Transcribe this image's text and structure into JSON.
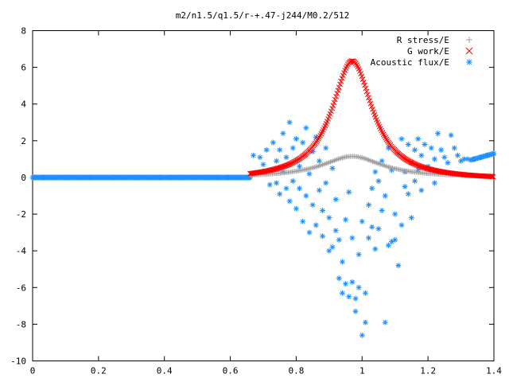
{
  "chart_data": {
    "type": "scatter",
    "title": "m2/n1.5/q1.5/r-+.47-j244/M0.2/512",
    "xlabel": "",
    "ylabel": "",
    "xlim": [
      0,
      1.4
    ],
    "ylim": [
      -10,
      8
    ],
    "xticks": [
      "0",
      "0.2",
      "0.4",
      "0.6",
      "0.8",
      "1",
      "1.2",
      "1.4"
    ],
    "yticks": [
      "8",
      "6",
      "4",
      "2",
      "0",
      "-2",
      "-4",
      "-6",
      "-8",
      "-10"
    ],
    "grid": false,
    "legend_position": "top-right",
    "series": [
      {
        "name": "R stress/E",
        "marker": "+",
        "color": "#a0a0a0",
        "peak_x": 0.97,
        "peak_y": 1.15,
        "x_start": 0.66,
        "x_end": 1.4
      },
      {
        "name": "G work/E",
        "marker": "x",
        "color": "#ff0000",
        "peak_x": 0.97,
        "peak_y": 6.5,
        "x_start": 0.66,
        "x_end": 1.4
      },
      {
        "name": "Acoustic flux/E",
        "marker": "*",
        "color": "#1e90ff",
        "baseline_x_range": [
          0,
          0.66
        ],
        "edge_values": {
          "left_x": 0.66,
          "left_y": 1.2,
          "right_x": 1.4,
          "right_y": 1.3
        },
        "scatter_points": [
          [
            0.67,
            1.2
          ],
          [
            0.69,
            1.1
          ],
          [
            0.7,
            0.7
          ],
          [
            0.71,
            1.5
          ],
          [
            0.72,
            0.4
          ],
          [
            0.72,
            -0.4
          ],
          [
            0.73,
            1.9
          ],
          [
            0.74,
            -0.3
          ],
          [
            0.74,
            0.9
          ],
          [
            0.75,
            1.5
          ],
          [
            0.75,
            -0.9
          ],
          [
            0.76,
            0.3
          ],
          [
            0.76,
            2.4
          ],
          [
            0.77,
            -0.6
          ],
          [
            0.77,
            1.1
          ],
          [
            0.78,
            3.0
          ],
          [
            0.78,
            -1.3
          ],
          [
            0.79,
            1.6
          ],
          [
            0.79,
            -0.2
          ],
          [
            0.8,
            2.1
          ],
          [
            0.8,
            -1.7
          ],
          [
            0.81,
            0.6
          ],
          [
            0.81,
            -0.6
          ],
          [
            0.82,
            1.9
          ],
          [
            0.82,
            -2.4
          ],
          [
            0.83,
            -1.0
          ],
          [
            0.83,
            2.7
          ],
          [
            0.84,
            0.2
          ],
          [
            0.84,
            -3.0
          ],
          [
            0.85,
            1.4
          ],
          [
            0.85,
            -1.5
          ],
          [
            0.86,
            -2.6
          ],
          [
            0.86,
            2.2
          ],
          [
            0.87,
            -0.7
          ],
          [
            0.87,
            0.9
          ],
          [
            0.88,
            -3.2
          ],
          [
            0.88,
            -1.8
          ],
          [
            0.89,
            1.6
          ],
          [
            0.89,
            -0.3
          ],
          [
            0.9,
            -4.0
          ],
          [
            0.9,
            -2.2
          ],
          [
            0.91,
            -3.8
          ],
          [
            0.91,
            0.5
          ],
          [
            0.92,
            -1.2
          ],
          [
            0.92,
            -2.9
          ],
          [
            0.93,
            -5.5
          ],
          [
            0.93,
            -3.4
          ],
          [
            0.94,
            -6.3
          ],
          [
            0.94,
            -4.6
          ],
          [
            0.95,
            -5.8
          ],
          [
            0.95,
            -2.3
          ],
          [
            0.96,
            -6.5
          ],
          [
            0.96,
            -0.8
          ],
          [
            0.97,
            -5.7
          ],
          [
            0.97,
            -3.3
          ],
          [
            0.98,
            -7.3
          ],
          [
            0.98,
            -6.6
          ],
          [
            0.99,
            -4.2
          ],
          [
            0.99,
            -6.0
          ],
          [
            1.0,
            -8.6
          ],
          [
            1.0,
            -2.4
          ],
          [
            1.01,
            -7.9
          ],
          [
            1.01,
            -6.3
          ],
          [
            1.02,
            -1.5
          ],
          [
            1.02,
            -3.3
          ],
          [
            1.03,
            -0.6
          ],
          [
            1.03,
            -2.7
          ],
          [
            1.04,
            0.3
          ],
          [
            1.04,
            -3.9
          ],
          [
            1.05,
            -0.2
          ],
          [
            1.05,
            -2.8
          ],
          [
            1.06,
            0.9
          ],
          [
            1.06,
            -1.8
          ],
          [
            1.07,
            -7.9
          ],
          [
            1.07,
            -1.0
          ],
          [
            1.08,
            -3.7
          ],
          [
            1.08,
            1.6
          ],
          [
            1.09,
            -3.5
          ],
          [
            1.09,
            0.4
          ],
          [
            1.1,
            -3.4
          ],
          [
            1.1,
            -2.0
          ],
          [
            1.11,
            -4.8
          ],
          [
            1.11,
            1.3
          ],
          [
            1.12,
            -2.6
          ],
          [
            1.12,
            2.1
          ],
          [
            1.13,
            -0.5
          ],
          [
            1.13,
            0.3
          ],
          [
            1.14,
            1.8
          ],
          [
            1.14,
            -0.9
          ],
          [
            1.15,
            -2.2
          ],
          [
            1.15,
            0.8
          ],
          [
            1.16,
            1.5
          ],
          [
            1.16,
            -0.2
          ],
          [
            1.17,
            2.1
          ],
          [
            1.17,
            0.4
          ],
          [
            1.18,
            1.2
          ],
          [
            1.18,
            -0.7
          ],
          [
            1.19,
            1.8
          ],
          [
            1.2,
            0.6
          ],
          [
            1.21,
            1.6
          ],
          [
            1.22,
            -0.3
          ],
          [
            1.22,
            1.0
          ],
          [
            1.23,
            2.4
          ],
          [
            1.24,
            1.5
          ],
          [
            1.25,
            1.1
          ],
          [
            1.26,
            0.8
          ],
          [
            1.27,
            2.3
          ],
          [
            1.28,
            1.6
          ],
          [
            1.29,
            1.2
          ],
          [
            1.3,
            0.9
          ],
          [
            1.31,
            1.0
          ],
          [
            1.32,
            1.0
          ],
          [
            1.34,
            1.0
          ],
          [
            1.36,
            1.1
          ],
          [
            1.38,
            1.2
          ],
          [
            1.4,
            1.3
          ]
        ]
      }
    ]
  }
}
